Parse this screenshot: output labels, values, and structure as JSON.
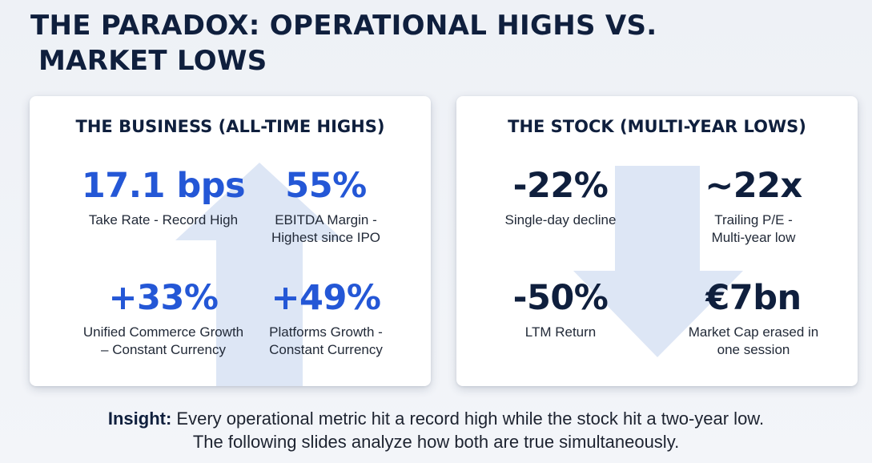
{
  "header": {
    "title_line1": "THE PARADOX: OPERATIONAL HIGHS VS.",
    "title_line2": "MARKET LOWS"
  },
  "business_panel": {
    "title": "THE BUSINESS (ALL-TIME HIGHS)",
    "arrow_icon": "up-arrow",
    "metrics": [
      {
        "value": "17.1 bps",
        "label": "Take Rate - Record High"
      },
      {
        "value": "55%",
        "label_line1": "EBITDA Margin -",
        "label_line2": "Highest since IPO"
      },
      {
        "value": "+33%",
        "label_line1": "Unified Commerce Growth",
        "label_line2": "– Constant Currency"
      },
      {
        "value": "+49%",
        "label_line1": "Platforms Growth -",
        "label_line2": "Constant Currency"
      }
    ]
  },
  "stock_panel": {
    "title": "THE STOCK (MULTI-YEAR LOWS)",
    "arrow_icon": "down-arrow",
    "metrics": [
      {
        "value": "-22%",
        "label": "Single-day decline"
      },
      {
        "value": "~22x",
        "label_line1": "Trailing P/E -",
        "label_line2": "Multi-year low"
      },
      {
        "value": "-50%",
        "label": "LTM Return"
      },
      {
        "value": "€7bn",
        "label_line1": "Market Cap erased in",
        "label_line2": "one session"
      }
    ]
  },
  "insight": {
    "lead": "Insight:",
    "line1_rest": " Every operational metric hit a record high while the stock hit a two-year low.",
    "line2": "The following slides analyze how both are true simultaneously."
  },
  "colors": {
    "navy": "#0f1f3d",
    "accent_blue": "#2457d6",
    "arrow_fill": "#dde6f5",
    "background": "#eef1f6"
  }
}
